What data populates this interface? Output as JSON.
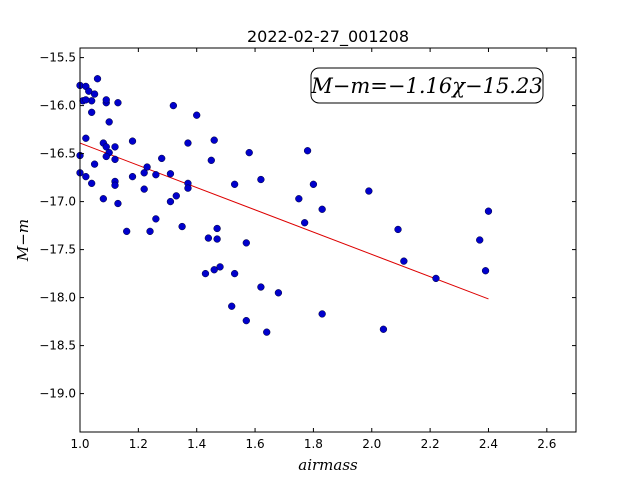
{
  "chart_data": {
    "type": "scatter",
    "title": "2022-02-27_001208",
    "xlabel": "airmass",
    "ylabel": "M−m",
    "xlim": [
      1.0,
      2.7
    ],
    "ylim": [
      -19.4,
      -15.4
    ],
    "y_inverted": true,
    "grid": false,
    "x_ticks": [
      "1.0",
      "1.2",
      "1.4",
      "1.6",
      "1.8",
      "2.0",
      "2.2",
      "2.4",
      "2.6"
    ],
    "x_tick_values": [
      1.0,
      1.2,
      1.4,
      1.6,
      1.8,
      2.0,
      2.2,
      2.4,
      2.6
    ],
    "y_ticks": [
      "−15.5",
      "−16.0",
      "−16.5",
      "−17.0",
      "−17.5",
      "−18.0",
      "−18.5",
      "−19.0"
    ],
    "y_tick_values": [
      -15.5,
      -16.0,
      -16.5,
      -17.0,
      -17.5,
      -18.0,
      -18.5,
      -19.0
    ],
    "annotation": "M−m=−1.16χ−15.23",
    "point_color": "#0000cc",
    "fit_color": "#dd0000",
    "fit": {
      "slope": -1.16,
      "intercept": -15.23,
      "x_range": [
        1.0,
        2.4
      ]
    },
    "points": [
      [
        1.0,
        -15.79
      ],
      [
        1.01,
        -15.95
      ],
      [
        1.02,
        -15.8
      ],
      [
        1.03,
        -15.85
      ],
      [
        1.04,
        -15.95
      ],
      [
        1.02,
        -15.94
      ],
      [
        1.04,
        -16.07
      ],
      [
        1.05,
        -15.88
      ],
      [
        1.06,
        -15.72
      ],
      [
        1.09,
        -15.97
      ],
      [
        1.09,
        -15.94
      ],
      [
        1.13,
        -15.97
      ],
      [
        1.1,
        -16.17
      ],
      [
        1.0,
        -16.52
      ],
      [
        1.02,
        -16.34
      ],
      [
        1.05,
        -16.61
      ],
      [
        1.08,
        -16.39
      ],
      [
        1.09,
        -16.43
      ],
      [
        1.1,
        -16.49
      ],
      [
        1.09,
        -16.53
      ],
      [
        1.12,
        -16.43
      ],
      [
        1.12,
        -16.56
      ],
      [
        1.0,
        -16.7
      ],
      [
        1.02,
        -16.74
      ],
      [
        1.04,
        -16.81
      ],
      [
        1.08,
        -16.97
      ],
      [
        1.12,
        -16.79
      ],
      [
        1.12,
        -16.83
      ],
      [
        1.13,
        -17.02
      ],
      [
        1.18,
        -16.37
      ],
      [
        1.18,
        -16.74
      ],
      [
        1.22,
        -16.7
      ],
      [
        1.23,
        -16.64
      ],
      [
        1.22,
        -16.87
      ],
      [
        1.16,
        -17.31
      ],
      [
        1.24,
        -17.31
      ],
      [
        1.26,
        -16.72
      ],
      [
        1.28,
        -16.55
      ],
      [
        1.31,
        -16.71
      ],
      [
        1.32,
        -16.0
      ],
      [
        1.31,
        -17.0
      ],
      [
        1.33,
        -16.94
      ],
      [
        1.26,
        -17.18
      ],
      [
        1.37,
        -16.39
      ],
      [
        1.37,
        -16.81
      ],
      [
        1.37,
        -16.86
      ],
      [
        1.4,
        -16.1
      ],
      [
        1.35,
        -17.26
      ],
      [
        1.45,
        -16.57
      ],
      [
        1.46,
        -16.36
      ],
      [
        1.44,
        -17.38
      ],
      [
        1.47,
        -17.28
      ],
      [
        1.47,
        -17.39
      ],
      [
        1.43,
        -17.75
      ],
      [
        1.46,
        -17.71
      ],
      [
        1.48,
        -17.68
      ],
      [
        1.53,
        -16.82
      ],
      [
        1.58,
        -16.49
      ],
      [
        1.57,
        -17.43
      ],
      [
        1.53,
        -17.75
      ],
      [
        1.52,
        -18.09
      ],
      [
        1.57,
        -18.24
      ],
      [
        1.62,
        -16.77
      ],
      [
        1.62,
        -17.89
      ],
      [
        1.64,
        -18.36
      ],
      [
        1.68,
        -17.95
      ],
      [
        1.75,
        -16.97
      ],
      [
        1.78,
        -16.47
      ],
      [
        1.8,
        -16.82
      ],
      [
        1.77,
        -17.22
      ],
      [
        1.83,
        -17.08
      ],
      [
        1.83,
        -18.17
      ],
      [
        1.99,
        -16.89
      ],
      [
        2.04,
        -18.33
      ],
      [
        2.09,
        -17.29
      ],
      [
        2.11,
        -17.62
      ],
      [
        2.22,
        -17.8
      ],
      [
        2.37,
        -17.4
      ],
      [
        2.4,
        -17.1
      ],
      [
        2.39,
        -17.72
      ]
    ]
  }
}
